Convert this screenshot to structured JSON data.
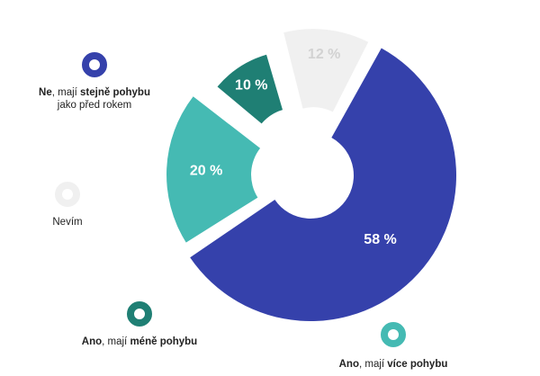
{
  "chart_data": {
    "type": "pie",
    "slices": [
      {
        "value": 58,
        "value_label": "58 %",
        "label_parts": [
          {
            "text": "Ne",
            "bold": true
          },
          {
            "text": ", mají ",
            "bold": false
          },
          {
            "text": "stejně pohybu",
            "bold": true
          }
        ],
        "label_line2": "jako před rokem",
        "color": "#3541ab",
        "text_color": "#ffffff"
      },
      {
        "value": 20,
        "value_label": "20 %",
        "label_parts": [
          {
            "text": "Ano",
            "bold": true
          },
          {
            "text": ", mají ",
            "bold": false
          },
          {
            "text": "více pohybu",
            "bold": true
          }
        ],
        "label_line2": "",
        "color": "#45bab3",
        "text_color": "#ffffff"
      },
      {
        "value": 10,
        "value_label": "10 %",
        "label_parts": [
          {
            "text": "Ano",
            "bold": true
          },
          {
            "text": ", mají ",
            "bold": false
          },
          {
            "text": "méně pohybu",
            "bold": true
          }
        ],
        "label_line2": "",
        "color": "#1f7f74",
        "text_color": "#ffffff"
      },
      {
        "value": 12,
        "value_label": "12 %",
        "label_parts": [
          {
            "text": "Nevím",
            "bold": false
          }
        ],
        "label_line2": "",
        "color": "#f0f0f0",
        "text_color": "#d2d2d2"
      }
    ]
  }
}
